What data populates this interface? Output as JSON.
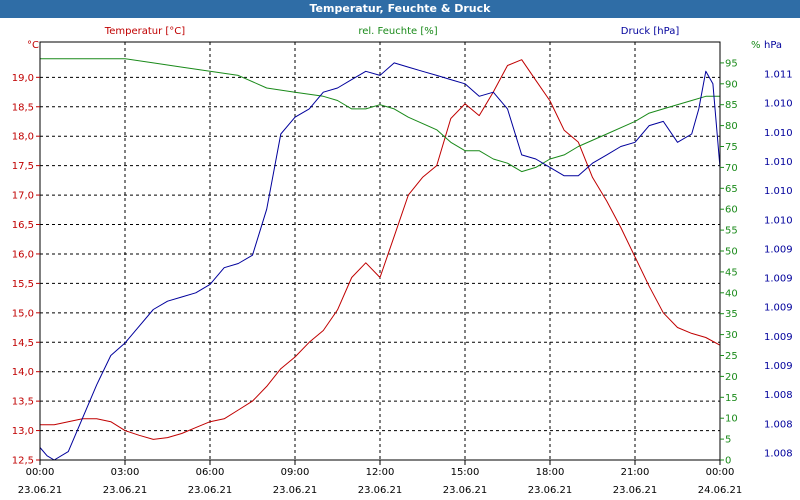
{
  "window": {
    "title": "Temperatur, Feuchte & Druck"
  },
  "colors": {
    "temperature": "#c00000",
    "humidity": "#1a8a1a",
    "pressure": "#00009c",
    "titlebar": "#2f6da6"
  },
  "chart_data": {
    "type": "line",
    "title": "Temperatur, Feuchte & Druck",
    "grid": true,
    "x": {
      "range": [
        "23.06.21 00:00",
        "24.06.21 00:00"
      ],
      "ticks": [
        {
          "time": "00:00",
          "date": "23.06.21"
        },
        {
          "time": "03:00",
          "date": "23.06.21"
        },
        {
          "time": "06:00",
          "date": "23.06.21"
        },
        {
          "time": "09:00",
          "date": "23.06.21"
        },
        {
          "time": "12:00",
          "date": "23.06.21"
        },
        {
          "time": "15:00",
          "date": "23.06.21"
        },
        {
          "time": "18:00",
          "date": "23.06.21"
        },
        {
          "time": "21:00",
          "date": "23.06.21"
        },
        {
          "time": "00:00",
          "date": "24.06.21"
        }
      ]
    },
    "axes": {
      "temperature": {
        "unit": "°C",
        "ylim": [
          12.5,
          19.6
        ],
        "ticks": [
          "19,0",
          "18,5",
          "18,0",
          "17,5",
          "17,0",
          "16,5",
          "16,0",
          "15,5",
          "15,0",
          "14,5",
          "14,0",
          "13,5",
          "13,0",
          "12,5"
        ]
      },
      "humidity": {
        "unit": "%",
        "ylim": [
          0,
          100
        ],
        "ticks": [
          "95",
          "90",
          "85",
          "80",
          "75",
          "70",
          "65",
          "60",
          "55",
          "50",
          "45",
          "40",
          "35",
          "30",
          "25",
          "20",
          "15",
          "10",
          "5",
          "0"
        ]
      },
      "pressure": {
        "unit": "hPa",
        "ticks": [
          "1.011",
          "1.010",
          "1.010",
          "1.010",
          "1.010",
          "1.010",
          "1.009",
          "1.009",
          "1.009",
          "1.009",
          "1.009",
          "1.008",
          "1.008",
          "1.008"
        ]
      }
    },
    "series": [
      {
        "name": "Temperatur [°C]",
        "axis": "temperature",
        "color": "#c00000",
        "x_hours": [
          0,
          0.5,
          1,
          1.5,
          2,
          2.5,
          3,
          3.5,
          4,
          4.5,
          5,
          5.5,
          6,
          6.5,
          7,
          7.5,
          8,
          8.5,
          9,
          9.5,
          10,
          10.5,
          11,
          11.5,
          12,
          12.5,
          13,
          13.5,
          14,
          14.5,
          15,
          15.5,
          16,
          16.5,
          17,
          17.5,
          18,
          18.5,
          19,
          19.5,
          20,
          20.5,
          21,
          21.5,
          22,
          22.5,
          23,
          23.5,
          24
        ],
        "values": [
          13.1,
          13.1,
          13.15,
          13.2,
          13.2,
          13.15,
          13.0,
          12.92,
          12.85,
          12.88,
          12.95,
          13.05,
          13.15,
          13.2,
          13.35,
          13.5,
          13.75,
          14.05,
          14.25,
          14.5,
          14.7,
          15.05,
          15.6,
          15.85,
          15.6,
          16.3,
          17.0,
          17.3,
          17.5,
          18.3,
          18.55,
          18.35,
          18.75,
          19.2,
          19.3,
          18.95,
          18.6,
          18.1,
          17.9,
          17.3,
          16.9,
          16.45,
          15.95,
          15.45,
          15.0,
          14.75,
          14.65,
          14.58,
          14.45
        ]
      },
      {
        "name": "rel. Feuchte [%]",
        "axis": "humidity",
        "color": "#1a8a1a",
        "x_hours": [
          0,
          1,
          2,
          3,
          4,
          5,
          6,
          7,
          8,
          9,
          10,
          10.5,
          11,
          11.5,
          12,
          12.5,
          13,
          14,
          14.5,
          15,
          15.5,
          16,
          16.5,
          17,
          17.5,
          18,
          18.5,
          19,
          20,
          21,
          21.5,
          22,
          23,
          23.5,
          24
        ],
        "values": [
          96,
          96,
          96,
          96,
          95,
          94,
          93,
          92,
          89,
          88,
          87,
          86,
          84,
          84,
          85,
          84,
          82,
          79,
          76,
          74,
          74,
          72,
          71,
          69,
          70,
          72,
          73,
          75,
          78,
          81,
          83,
          84,
          86,
          87,
          87
        ]
      },
      {
        "name": "Druck [hPa]",
        "axis": "pressure",
        "color": "#00009c",
        "x_hours": [
          0,
          0.25,
          0.5,
          1,
          1.5,
          2,
          2.5,
          3,
          3.5,
          4,
          4.5,
          5,
          5.5,
          6,
          6.5,
          7,
          7.5,
          8,
          8.5,
          9,
          9.5,
          10,
          10.5,
          11,
          11.5,
          12,
          12.5,
          13,
          13.5,
          14,
          14.5,
          15,
          15.5,
          16,
          16.5,
          17,
          17.5,
          18,
          18.5,
          19,
          19.5,
          20,
          20.5,
          21,
          21.5,
          22,
          22.5,
          23,
          23.25,
          23.5,
          23.75,
          24
        ],
        "values": [
          3,
          1,
          0,
          2,
          10,
          18,
          25,
          28,
          32,
          36,
          38,
          39,
          40,
          42,
          46,
          47,
          49,
          60,
          78,
          82,
          84,
          88,
          89,
          91,
          93,
          92,
          95,
          94,
          93,
          92,
          91,
          90,
          87,
          88,
          84,
          73,
          72,
          70,
          68,
          68,
          71,
          73,
          75,
          76,
          80,
          81,
          76,
          78,
          84,
          93,
          90,
          70
        ]
      }
    ]
  }
}
